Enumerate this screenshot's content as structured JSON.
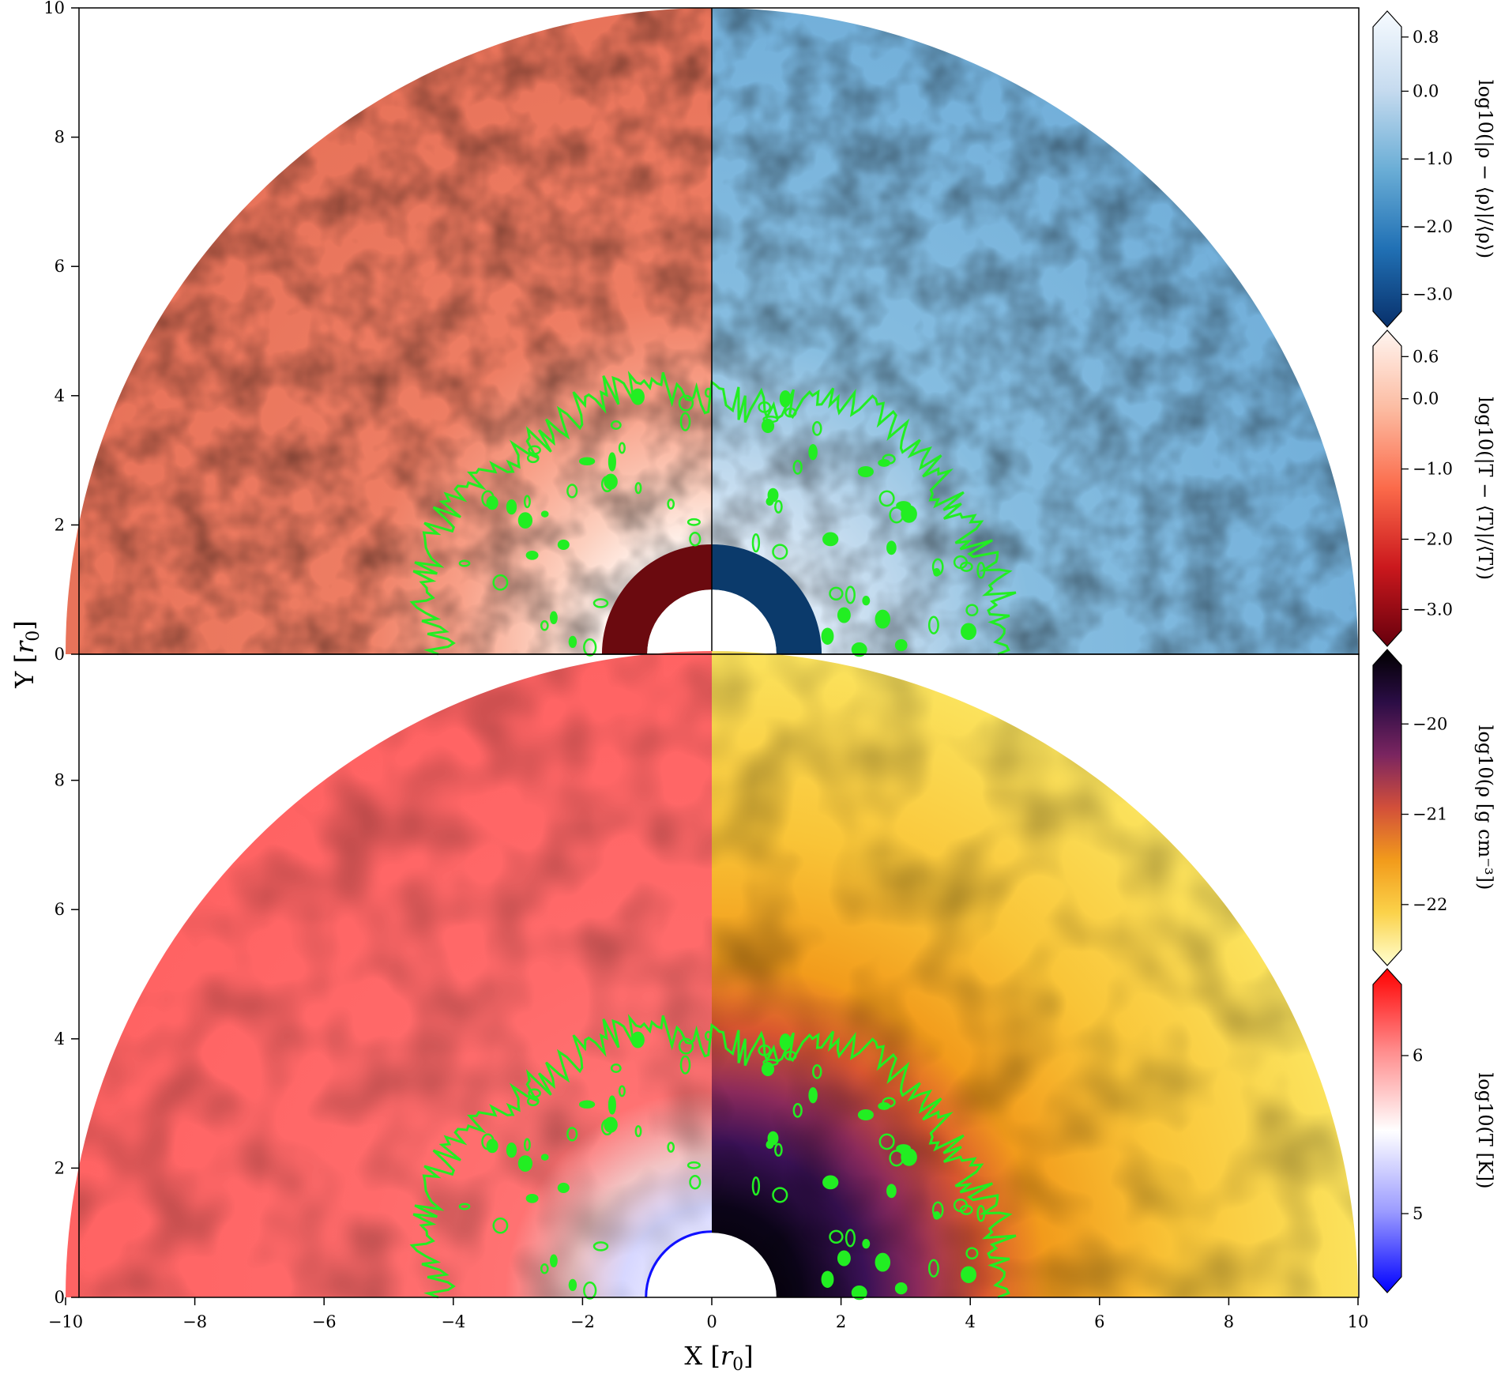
{
  "chart_data": [
    {
      "type": "heatmap",
      "panel": "top",
      "left_field": "log10(|T - <T>| / <T>)",
      "right_field": "log10(|rho - <rho>| / <rho>)",
      "xlim": [
        -10,
        10
      ],
      "ylim": [
        0,
        10
      ],
      "yticks": [
        0,
        2,
        4,
        6,
        8,
        10
      ],
      "ylabel": "Y [r0]",
      "contour_color": "#22ee22",
      "contour_radius_approx": 4.3,
      "inner_radius": 1.0,
      "core_shell_radius": 1.7
    },
    {
      "type": "heatmap",
      "panel": "bottom",
      "left_field": "log10(T [K])",
      "right_field": "log10(rho [g cm^-3])",
      "xlim": [
        -10,
        10
      ],
      "ylim": [
        0,
        10
      ],
      "xticks": [
        -10,
        -8,
        -6,
        -4,
        -2,
        0,
        2,
        4,
        6,
        8,
        10
      ],
      "yticks": [
        0,
        2,
        4,
        6,
        8
      ],
      "xlabel": "X [r0]",
      "contour_color": "#22ee22",
      "inner_radius": 1.0
    }
  ],
  "axes": {
    "ylabel_prefix": "Y [",
    "ylabel_sym": "r",
    "ylabel_sub": "0",
    "ylabel_suffix": "]",
    "xlabel_prefix": "X [",
    "xlabel_sym": "r",
    "xlabel_sub": "0",
    "xlabel_suffix": "]",
    "top_yticks": [
      "0",
      "2",
      "4",
      "6",
      "8",
      "10"
    ],
    "bottom_yticks": [
      "0",
      "2",
      "4",
      "6",
      "8"
    ],
    "xticks": [
      "−10",
      "−8",
      "−6",
      "−4",
      "−2",
      "0",
      "2",
      "4",
      "6",
      "8",
      "10"
    ]
  },
  "colorbars": [
    {
      "name": "rho-fluctuation",
      "label": "log10(|ρ − ⟨ρ⟩|/⟨ρ⟩)",
      "ticks": [
        "0.8",
        "0.0",
        "−1.0",
        "−2.0",
        "−3.0"
      ],
      "tick_values": [
        0.8,
        0.0,
        -1.0,
        -2.0,
        -3.0
      ],
      "range": [
        -3.25,
        0.95
      ],
      "colors": [
        "#08306b",
        "#2171b5",
        "#6baed6",
        "#c6dbef",
        "#f7fbff"
      ]
    },
    {
      "name": "T-fluctuation",
      "label": "log10(|T − ⟨T⟩|/⟨T⟩)",
      "ticks": [
        "0.6",
        "0.0",
        "−1.0",
        "−2.0",
        "−3.0"
      ],
      "tick_values": [
        0.6,
        0.0,
        -1.0,
        -2.0,
        -3.0
      ],
      "range": [
        -3.3,
        0.75
      ],
      "colors": [
        "#67000d",
        "#cb181d",
        "#fb6a4a",
        "#fcbba1",
        "#fff5f0"
      ]
    },
    {
      "name": "density",
      "label": "log10(ρ [g cm⁻³])",
      "ticks": [
        "−20",
        "−21",
        "−22"
      ],
      "tick_values": [
        -20,
        -21,
        -22
      ],
      "range": [
        -22.5,
        -19.35
      ],
      "colors": [
        "#ffffd0",
        "#fbd24a",
        "#f29b1b",
        "#d24f3a",
        "#7a2560",
        "#2b0d45",
        "#000000"
      ]
    },
    {
      "name": "temperature",
      "label": "log10(T [K])",
      "ticks": [
        "6",
        "5"
      ],
      "tick_values": [
        6,
        5
      ],
      "range": [
        4.6,
        6.45
      ],
      "colors": [
        "#0000ff",
        "#9b9bff",
        "#ffffff",
        "#ff8a8a",
        "#ff0000"
      ]
    }
  ]
}
